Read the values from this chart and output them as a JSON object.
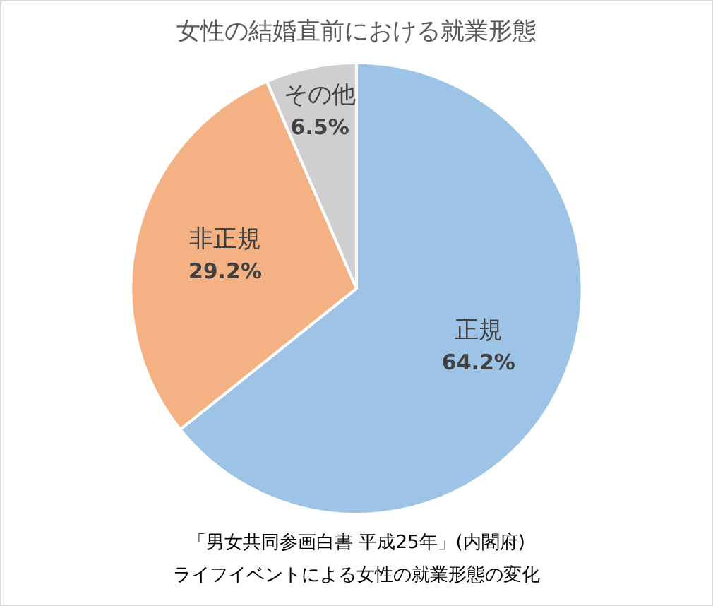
{
  "chart_data": {
    "type": "pie",
    "title": "女性の結婚直前における就業形態",
    "categories": [
      "正規",
      "非正規",
      "その他"
    ],
    "values": [
      64.2,
      29.2,
      6.5
    ],
    "value_labels": [
      "64.2%",
      "29.2%",
      "6.5%"
    ],
    "colors": [
      "#9dc3e6",
      "#f4b183",
      "#d0cece"
    ],
    "legend": false,
    "annotations": [
      "「男女共同参画白書 平成25年」(内閣府)",
      "ライフイベントによる女性の就業形態の変化"
    ]
  }
}
